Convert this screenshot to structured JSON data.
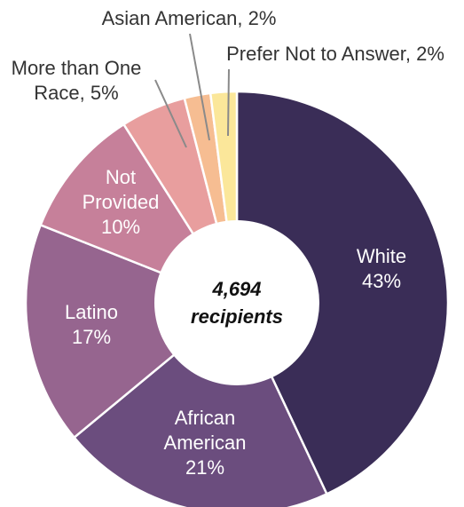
{
  "chart_data": {
    "type": "pie",
    "title": "",
    "center_value": "4,694",
    "center_unit": "recipients",
    "slices": [
      {
        "label": "White",
        "value": 43,
        "pct_text": "43%",
        "color": "#3a2d57",
        "text_color": "#ffffff",
        "label_lines": [
          "White",
          "43%"
        ]
      },
      {
        "label": "African American",
        "value": 21,
        "pct_text": "21%",
        "color": "#6b4d7e",
        "text_color": "#ffffff",
        "label_lines": [
          "African",
          "American",
          "21%"
        ]
      },
      {
        "label": "Latino",
        "value": 17,
        "pct_text": "17%",
        "color": "#96658f",
        "text_color": "#ffffff",
        "label_lines": [
          "Latino",
          "17%"
        ]
      },
      {
        "label": "Not Provided",
        "value": 10,
        "pct_text": "10%",
        "color": "#c6809a",
        "text_color": "#ffffff",
        "label_lines": [
          "Not",
          "Provided",
          "10%"
        ]
      },
      {
        "label": "More than One Race",
        "value": 5,
        "pct_text": "5%",
        "color": "#e89e9e",
        "text_color": "#333333",
        "label_lines": [
          "More than One",
          "Race, 5%"
        ]
      },
      {
        "label": "Asian American",
        "value": 2,
        "pct_text": "2%",
        "color": "#f6bd92",
        "text_color": "#333333",
        "label_lines": [
          "Asian American, 2%"
        ]
      },
      {
        "label": "Prefer Not to Answer",
        "value": 2,
        "pct_text": "2%",
        "color": "#fbe79a",
        "text_color": "#333333",
        "label_lines": [
          "Prefer Not to Answer, 2%"
        ]
      }
    ]
  }
}
